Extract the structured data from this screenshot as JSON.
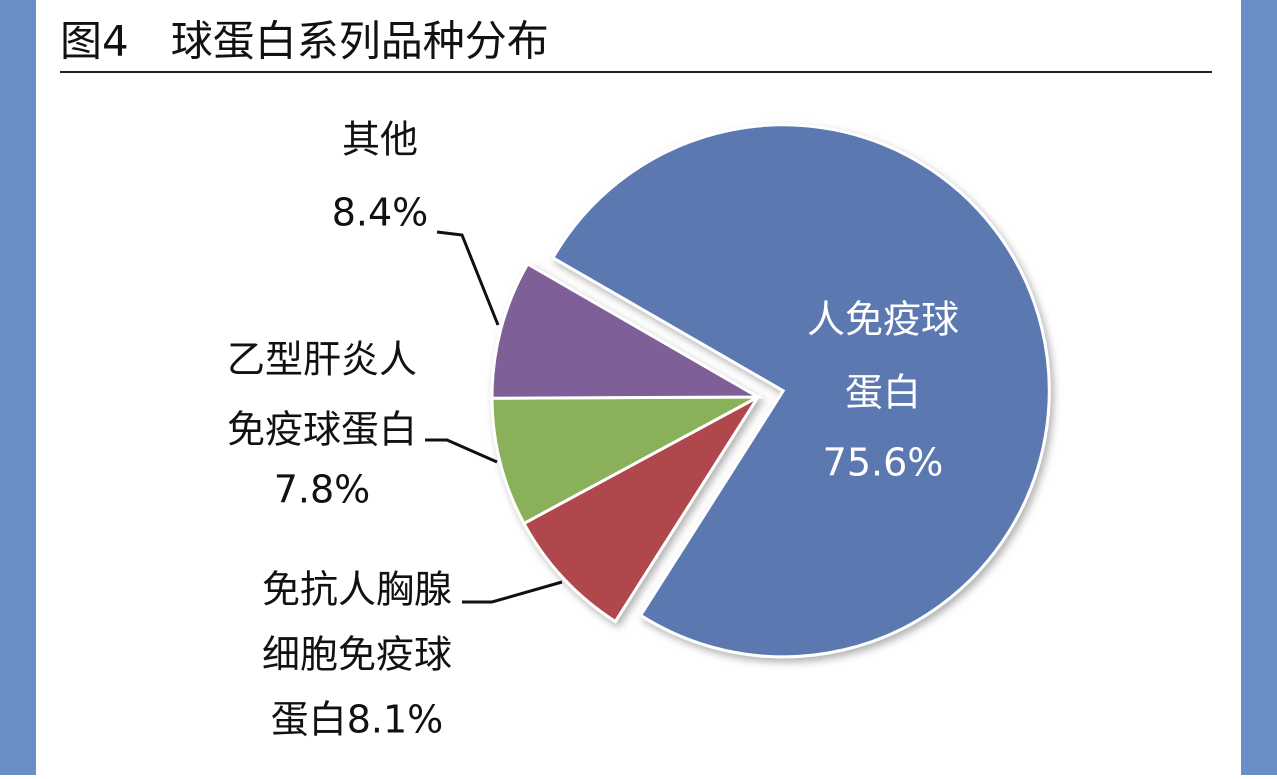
{
  "chart_data": {
    "type": "pie",
    "title": "图4　球蛋白系列品种分布",
    "categories": [
      "人免疫球蛋白",
      "免抗人胸腺细胞免疫球蛋白",
      "乙型肝炎人免疫球蛋白",
      "其他"
    ],
    "label_lines": [
      [
        "人免疫球",
        "蛋白",
        "75.6%"
      ],
      [
        "免抗人胸腺",
        "细胞免疫球",
        "蛋白8.1%"
      ],
      [
        "乙型肝炎人",
        "免疫球蛋白",
        "7.8%"
      ],
      [
        "其他",
        "8.4%"
      ]
    ],
    "values": [
      75.6,
      8.1,
      7.8,
      8.4
    ],
    "colors": [
      "#5b78b0",
      "#b0474e",
      "#8bb05a",
      "#7e5e98"
    ]
  }
}
